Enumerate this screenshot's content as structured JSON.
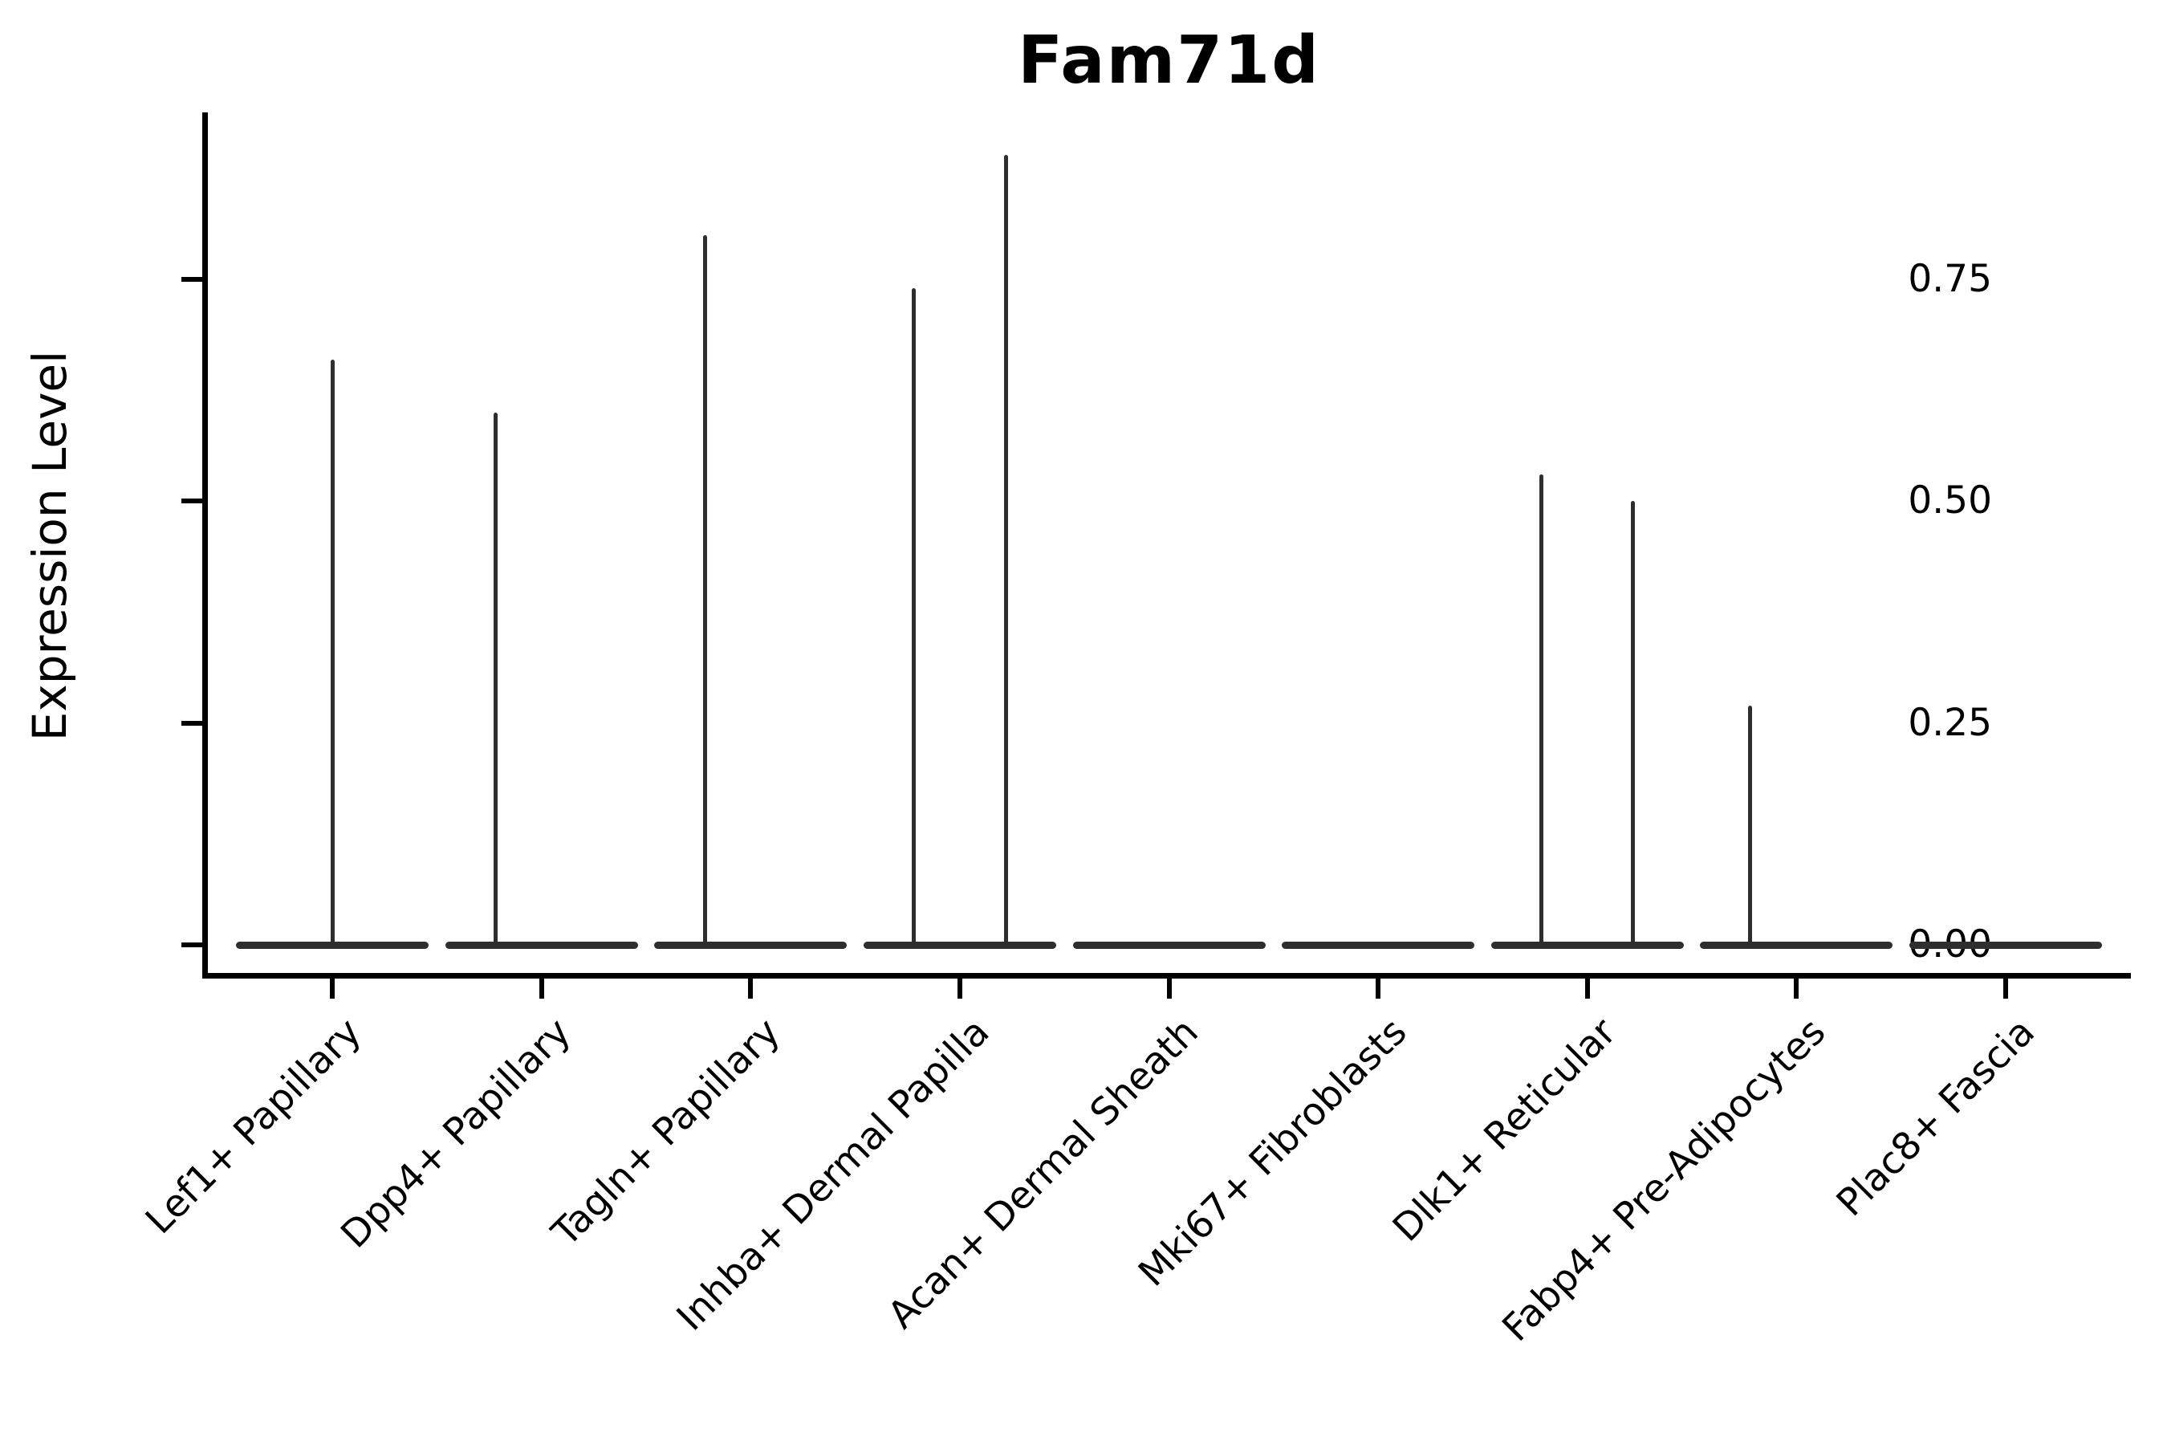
{
  "title": "Fam71d",
  "chart_data": {
    "type": "violin",
    "title": "Fam71d",
    "xlabel": "",
    "ylabel": "Expression Level",
    "yticks_labels": [
      "0.00",
      "0.25",
      "0.50",
      "0.75"
    ],
    "yticks_values": [
      0,
      0.25,
      0.5,
      0.75
    ],
    "ylim": [
      -0.03,
      0.94
    ],
    "grid": false,
    "legend": "none",
    "categories": [
      "Lef1+ Papillary",
      "Dpp4+ Papillary",
      "Tagln+ Papillary",
      "Inhba+ Dermal Papilla",
      "Acan+ Dermal Sheath",
      "Mki67+ Fibroblasts",
      "Dlk1+ Reticular",
      "Fabp4+ Pre-Adipocytes",
      "Plac8+ Fascia"
    ],
    "series": [
      {
        "category": "Lef1+ Papillary",
        "baseline_value": 0,
        "spikes": [
          {
            "dx": 0,
            "value": 0.66
          }
        ]
      },
      {
        "category": "Dpp4+ Papillary",
        "baseline_value": 0,
        "spikes": [
          {
            "dx": -0.22,
            "value": 0.6
          }
        ]
      },
      {
        "category": "Tagln+ Papillary",
        "baseline_value": 0,
        "spikes": [
          {
            "dx": -0.22,
            "value": 0.8
          }
        ]
      },
      {
        "category": "Inhba+ Dermal Papilla",
        "baseline_value": 0,
        "spikes": [
          {
            "dx": -0.22,
            "value": 0.74
          },
          {
            "dx": 0.22,
            "value": 0.89
          }
        ]
      },
      {
        "category": "Acan+ Dermal Sheath",
        "baseline_value": 0,
        "spikes": []
      },
      {
        "category": "Mki67+ Fibroblasts",
        "baseline_value": 0,
        "spikes": []
      },
      {
        "category": "Dlk1+ Reticular",
        "baseline_value": 0,
        "spikes": [
          {
            "dx": -0.22,
            "value": 0.53
          },
          {
            "dx": 0.22,
            "value": 0.5
          }
        ]
      },
      {
        "category": "Fabp4+ Pre-Adipocytes",
        "baseline_value": 0,
        "spikes": [
          {
            "dx": -0.22,
            "value": 0.27
          }
        ]
      },
      {
        "category": "Plac8+ Fascia",
        "baseline_value": 0,
        "spikes": []
      }
    ],
    "colors": {
      "background": "#ffffff",
      "axis": "#000000",
      "text": "#000000",
      "violin_stroke": "#2e2e2e"
    }
  }
}
